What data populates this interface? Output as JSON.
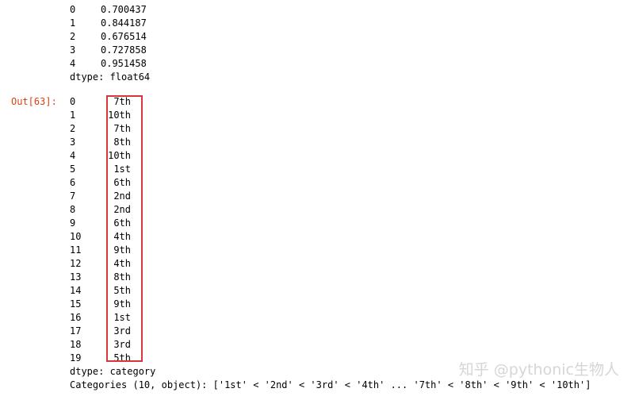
{
  "series1": {
    "rows": [
      {
        "index": "0",
        "value": "0.700437"
      },
      {
        "index": "1",
        "value": "0.844187"
      },
      {
        "index": "2",
        "value": "0.676514"
      },
      {
        "index": "3",
        "value": "0.727858"
      },
      {
        "index": "4",
        "value": "0.951458"
      }
    ],
    "dtype": "dtype: float64"
  },
  "output": {
    "prompt": "Out[63]:",
    "rows": [
      {
        "index": "0",
        "value": "7th"
      },
      {
        "index": "1",
        "value": "10th"
      },
      {
        "index": "2",
        "value": "7th"
      },
      {
        "index": "3",
        "value": "8th"
      },
      {
        "index": "4",
        "value": "10th"
      },
      {
        "index": "5",
        "value": "1st"
      },
      {
        "index": "6",
        "value": "6th"
      },
      {
        "index": "7",
        "value": "2nd"
      },
      {
        "index": "8",
        "value": "2nd"
      },
      {
        "index": "9",
        "value": "6th"
      },
      {
        "index": "10",
        "value": "4th"
      },
      {
        "index": "11",
        "value": "9th"
      },
      {
        "index": "12",
        "value": "4th"
      },
      {
        "index": "13",
        "value": "8th"
      },
      {
        "index": "14",
        "value": "5th"
      },
      {
        "index": "15",
        "value": "9th"
      },
      {
        "index": "16",
        "value": "1st"
      },
      {
        "index": "17",
        "value": "3rd"
      },
      {
        "index": "18",
        "value": "3rd"
      },
      {
        "index": "19",
        "value": "5th"
      }
    ],
    "dtype": "dtype: category",
    "categories": "Categories (10, object): ['1st' < '2nd' < '3rd' < '4th' ... '7th' < '8th' < '9th' < '10th']"
  },
  "colors": {
    "prompt": "#d84315",
    "highlight_box": "#d9363e"
  },
  "watermark": "知乎 @pythonic生物人"
}
